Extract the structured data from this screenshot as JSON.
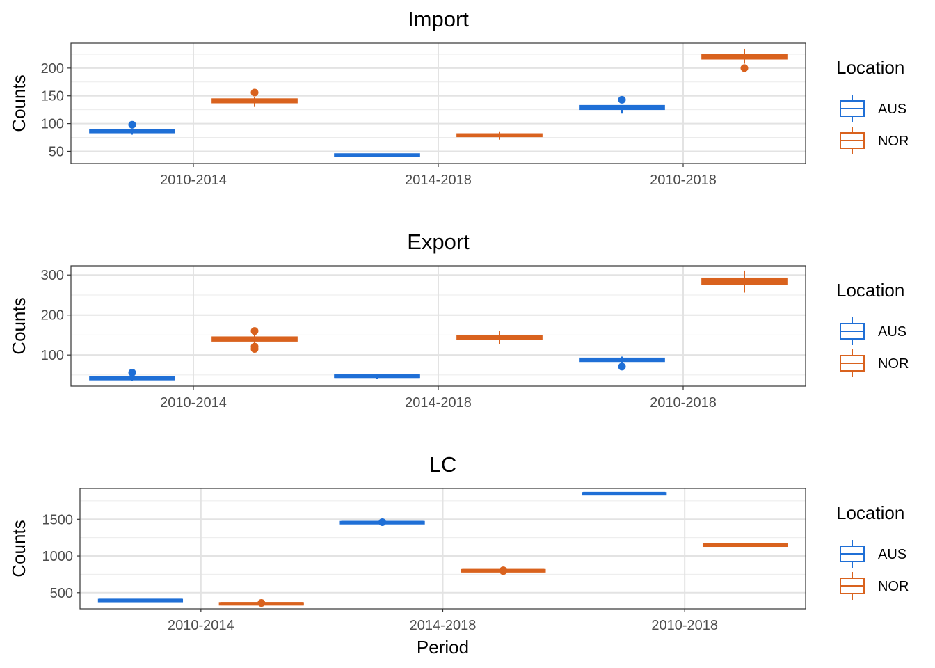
{
  "x_label": "Period",
  "y_label": "Counts",
  "legend": {
    "title": "Location",
    "items": [
      {
        "name": "AUS",
        "color": "#1f6fd6"
      },
      {
        "name": "NOR",
        "color": "#d9621e"
      }
    ]
  },
  "chart_data": [
    {
      "type": "box",
      "title": "Import",
      "xlabel": "",
      "ylabel": "Counts",
      "categories": [
        "2010-2014",
        "2014-2018",
        "2010-2018"
      ],
      "ylim": [
        28,
        245
      ],
      "yticks": [
        50,
        100,
        150,
        200
      ],
      "grid": true,
      "legend_position": "right",
      "series": [
        {
          "name": "AUS",
          "color": "#1f6fd6",
          "boxes": [
            {
              "median": 86,
              "q1": 85,
              "q3": 87,
              "whisker_low": 80,
              "whisker_high": 91,
              "outliers": [
                98
              ]
            },
            {
              "median": 43,
              "q1": 42,
              "q3": 44,
              "whisker_low": 40,
              "whisker_high": 46,
              "outliers": []
            },
            {
              "median": 129,
              "q1": 127,
              "q3": 131,
              "whisker_low": 118,
              "whisker_high": 133,
              "outliers": [
                143
              ]
            }
          ]
        },
        {
          "name": "NOR",
          "color": "#d9621e",
          "boxes": [
            {
              "median": 141,
              "q1": 139,
              "q3": 143,
              "whisker_low": 130,
              "whisker_high": 148,
              "outliers": [
                156
              ]
            },
            {
              "median": 79,
              "q1": 78,
              "q3": 80,
              "whisker_low": 71,
              "whisker_high": 86,
              "outliers": []
            },
            {
              "median": 220,
              "q1": 218,
              "q3": 223,
              "whisker_low": 208,
              "whisker_high": 235,
              "outliers": [
                200
              ]
            }
          ]
        }
      ]
    },
    {
      "type": "box",
      "title": "Export",
      "xlabel": "",
      "ylabel": "Counts",
      "categories": [
        "2010-2014",
        "2014-2018",
        "2010-2018"
      ],
      "ylim": [
        22,
        323
      ],
      "yticks": [
        100,
        200,
        300
      ],
      "grid": true,
      "legend_position": "right",
      "series": [
        {
          "name": "AUS",
          "color": "#1f6fd6",
          "boxes": [
            {
              "median": 42,
              "q1": 40,
              "q3": 44,
              "whisker_low": 35,
              "whisker_high": 48,
              "outliers": [
                56
              ]
            },
            {
              "median": 47,
              "q1": 46,
              "q3": 48,
              "whisker_low": 41,
              "whisker_high": 53,
              "outliers": []
            },
            {
              "median": 88,
              "q1": 86,
              "q3": 90,
              "whisker_low": 80,
              "whisker_high": 96,
              "outliers": [
                71
              ]
            }
          ]
        },
        {
          "name": "NOR",
          "color": "#d9621e",
          "boxes": [
            {
              "median": 140,
              "q1": 137,
              "q3": 143,
              "whisker_low": 130,
              "whisker_high": 150,
              "outliers": [
                160,
                121,
                115
              ]
            },
            {
              "median": 144,
              "q1": 141,
              "q3": 147,
              "whisker_low": 128,
              "whisker_high": 160,
              "outliers": []
            },
            {
              "median": 284,
              "q1": 278,
              "q3": 290,
              "whisker_low": 256,
              "whisker_high": 311,
              "outliers": []
            }
          ]
        }
      ]
    },
    {
      "type": "box",
      "title": "LC",
      "xlabel": "Period",
      "ylabel": "Counts",
      "categories": [
        "2010-2014",
        "2014-2018",
        "2010-2018"
      ],
      "ylim": [
        280,
        1920
      ],
      "yticks": [
        500,
        1000,
        1500
      ],
      "grid": true,
      "legend_position": "right",
      "series": [
        {
          "name": "AUS",
          "color": "#1f6fd6",
          "boxes": [
            {
              "median": 395,
              "q1": 392,
              "q3": 398,
              "whisker_low": 390,
              "whisker_high": 400,
              "outliers": []
            },
            {
              "median": 1455,
              "q1": 1452,
              "q3": 1458,
              "whisker_low": 1450,
              "whisker_high": 1460,
              "outliers": [
                1460
              ]
            },
            {
              "median": 1850,
              "q1": 1848,
              "q3": 1852,
              "whisker_low": 1846,
              "whisker_high": 1854,
              "outliers": []
            }
          ]
        },
        {
          "name": "NOR",
          "color": "#d9621e",
          "boxes": [
            {
              "median": 350,
              "q1": 347,
              "q3": 353,
              "whisker_low": 345,
              "whisker_high": 356,
              "outliers": [
                360
              ]
            },
            {
              "median": 800,
              "q1": 797,
              "q3": 803,
              "whisker_low": 795,
              "whisker_high": 805,
              "outliers": [
                805,
                795
              ]
            },
            {
              "median": 1150,
              "q1": 1148,
              "q3": 1152,
              "whisker_low": 1146,
              "whisker_high": 1154,
              "outliers": []
            }
          ]
        }
      ]
    }
  ]
}
